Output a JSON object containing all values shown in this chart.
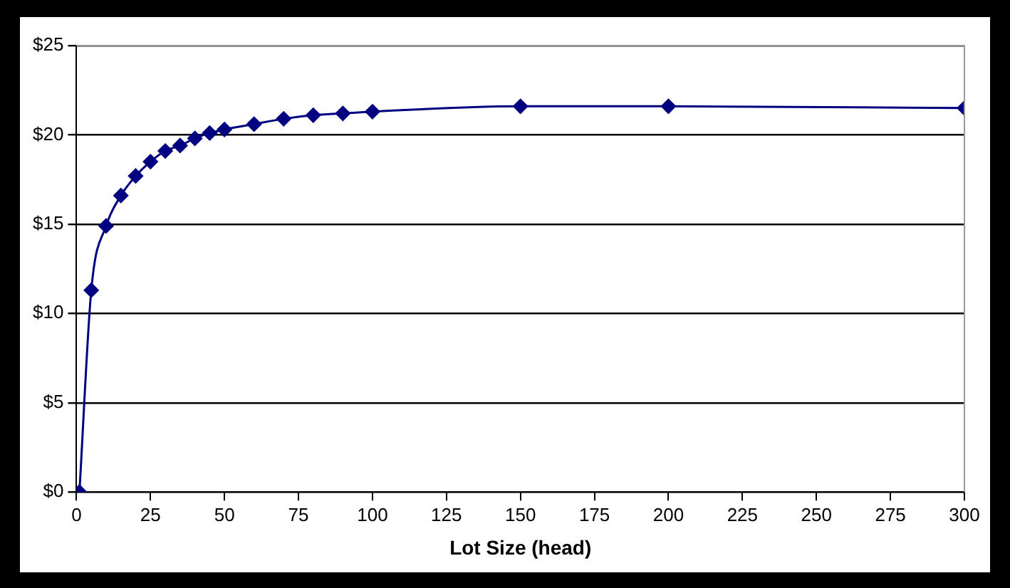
{
  "chart_data": {
    "type": "line",
    "xlabel": "Lot Size (head)",
    "x": [
      1,
      5,
      10,
      15,
      20,
      25,
      30,
      35,
      40,
      45,
      50,
      60,
      70,
      80,
      90,
      100,
      150,
      200,
      300
    ],
    "series": [
      {
        "color": "#000080",
        "values": [
          0,
          11.3,
          14.9,
          16.6,
          17.7,
          18.5,
          19.1,
          19.4,
          19.8,
          20.1,
          20.3,
          20.6,
          20.9,
          21.1,
          21.2,
          21.3,
          21.6,
          21.6,
          21.5
        ]
      }
    ],
    "xlim": [
      0,
      300
    ],
    "xticks": [
      0,
      25,
      50,
      75,
      100,
      125,
      150,
      175,
      200,
      225,
      250,
      275,
      300
    ],
    "ylim": [
      0,
      25
    ],
    "yticks": [
      {
        "value": 0,
        "label": "$0"
      },
      {
        "value": 5,
        "label": "$5"
      },
      {
        "value": 10,
        "label": "$10"
      },
      {
        "value": 15,
        "label": "$15"
      },
      {
        "value": 20,
        "label": "$20"
      },
      {
        "value": 25,
        "label": "$25"
      }
    ],
    "grid": "y",
    "legend": false,
    "marker": "diamond",
    "line_style": "solid"
  }
}
